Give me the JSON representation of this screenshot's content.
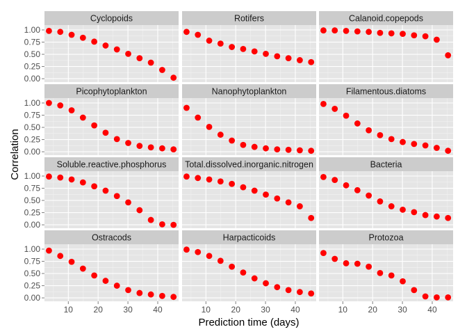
{
  "chart_data": {
    "type": "scatter",
    "xlabel": "Prediction time (days)",
    "ylabel": "Correlation",
    "xlim": [
      2,
      47
    ],
    "ylim": [
      -0.07,
      1.1
    ],
    "x_ticks": [
      "10",
      "20",
      "30",
      "40"
    ],
    "x_tick_values": [
      10,
      20,
      30,
      40
    ],
    "y_ticks": [
      "0.00",
      "0.25",
      "0.50",
      "0.75",
      "1.00"
    ],
    "y_tick_values": [
      0,
      0.25,
      0.5,
      0.75,
      1
    ],
    "x": [
      3.5,
      7.3,
      11.1,
      14.9,
      18.7,
      22.5,
      26.3,
      30.1,
      33.9,
      37.7,
      41.5,
      45.3
    ],
    "marker_color": "#ff0000",
    "panel_background": "#e5e5e5",
    "strip_background": "#cccccc",
    "grid_color": "#ffffff",
    "legend": "none",
    "facets": [
      {
        "name": "Cyclopoids",
        "x": [
          3.5,
          7.3,
          11.1,
          14.9,
          18.7,
          22.5,
          26.3,
          30.1,
          33.9,
          37.7,
          41.5,
          45.3
        ],
        "values": [
          0.98,
          0.96,
          0.9,
          0.84,
          0.76,
          0.68,
          0.6,
          0.51,
          0.42,
          0.33,
          0.18,
          0.02
        ]
      },
      {
        "name": "Rotifers",
        "x": [
          3.5,
          7.3,
          11.1,
          14.9,
          18.7,
          22.5,
          26.3,
          30.1,
          33.9,
          37.7,
          41.5,
          45.3
        ],
        "values": [
          0.96,
          0.9,
          0.78,
          0.72,
          0.65,
          0.61,
          0.56,
          0.51,
          0.46,
          0.42,
          0.38,
          0.34
        ]
      },
      {
        "name": "Calanoid.copepods",
        "x": [
          3.5,
          7.3,
          11.1,
          14.9,
          18.7,
          22.5,
          26.3,
          30.1,
          33.9,
          37.7,
          41.5,
          45.3
        ],
        "values": [
          0.99,
          0.99,
          0.98,
          0.97,
          0.96,
          0.94,
          0.93,
          0.92,
          0.89,
          0.87,
          0.8,
          0.48
        ]
      },
      {
        "name": "Picophytoplankton",
        "x": [
          3.5,
          7.3,
          11.1,
          14.9,
          18.7,
          22.5,
          26.3,
          30.1,
          33.9,
          37.7,
          41.5,
          45.3
        ],
        "values": [
          1.0,
          0.95,
          0.85,
          0.7,
          0.54,
          0.39,
          0.26,
          0.18,
          0.12,
          0.09,
          0.07,
          0.05
        ]
      },
      {
        "name": "Nanophytoplankton",
        "x": [
          3.5,
          7.3,
          11.1,
          14.9,
          18.7,
          22.5,
          26.3,
          30.1,
          33.9,
          37.7,
          41.5,
          45.3
        ],
        "values": [
          0.9,
          0.7,
          0.51,
          0.35,
          0.23,
          0.14,
          0.1,
          0.07,
          0.05,
          0.04,
          0.03,
          0.02
        ]
      },
      {
        "name": "Filamentous.diatoms",
        "x": [
          3.5,
          7.3,
          11.1,
          14.9,
          18.7,
          22.5,
          26.3,
          30.1,
          33.9,
          37.7,
          41.5,
          45.3
        ],
        "values": [
          0.98,
          0.88,
          0.74,
          0.58,
          0.44,
          0.34,
          0.26,
          0.2,
          0.16,
          0.13,
          0.08,
          0.02
        ]
      },
      {
        "name": "Soluble.reactive.phosphorus",
        "x": [
          3.5,
          7.3,
          11.1,
          14.9,
          18.7,
          22.5,
          26.3,
          30.1,
          33.9,
          37.7,
          41.5,
          45.3
        ],
        "values": [
          0.99,
          0.97,
          0.93,
          0.87,
          0.79,
          0.7,
          0.59,
          0.46,
          0.3,
          0.1,
          0.01,
          0.0
        ]
      },
      {
        "name": "Total.dissolved.inorganic.nitrogen",
        "x": [
          3.5,
          7.3,
          11.1,
          14.9,
          18.7,
          22.5,
          26.3,
          30.1,
          33.9,
          37.7,
          41.5,
          45.3
        ],
        "values": [
          0.99,
          0.96,
          0.93,
          0.89,
          0.84,
          0.77,
          0.7,
          0.62,
          0.54,
          0.46,
          0.38,
          0.14
        ]
      },
      {
        "name": "Bacteria",
        "x": [
          3.5,
          7.3,
          11.1,
          14.9,
          18.7,
          22.5,
          26.3,
          30.1,
          33.9,
          37.7,
          41.5,
          45.3
        ],
        "values": [
          0.98,
          0.92,
          0.81,
          0.71,
          0.6,
          0.48,
          0.38,
          0.31,
          0.26,
          0.2,
          0.17,
          0.14
        ]
      },
      {
        "name": "Ostracods",
        "x": [
          3.5,
          7.3,
          11.1,
          14.9,
          18.7,
          22.5,
          26.3,
          30.1,
          33.9,
          37.7,
          41.5,
          45.3
        ],
        "values": [
          0.97,
          0.86,
          0.74,
          0.6,
          0.46,
          0.35,
          0.25,
          0.16,
          0.1,
          0.07,
          0.04,
          0.02
        ]
      },
      {
        "name": "Harpacticoids",
        "x": [
          3.5,
          7.3,
          11.1,
          14.9,
          18.7,
          22.5,
          26.3,
          30.1,
          33.9,
          37.7,
          41.5,
          45.3
        ],
        "values": [
          0.99,
          0.94,
          0.86,
          0.76,
          0.64,
          0.52,
          0.4,
          0.3,
          0.22,
          0.16,
          0.12,
          0.09
        ]
      },
      {
        "name": "Protozoa",
        "x": [
          3.5,
          7.3,
          11.1,
          14.9,
          18.7,
          22.5,
          26.3,
          30.1,
          33.9,
          37.7,
          41.5,
          45.3
        ],
        "values": [
          0.92,
          0.8,
          0.71,
          0.7,
          0.64,
          0.51,
          0.46,
          0.34,
          0.16,
          0.03,
          0.01,
          0.01
        ]
      }
    ]
  }
}
